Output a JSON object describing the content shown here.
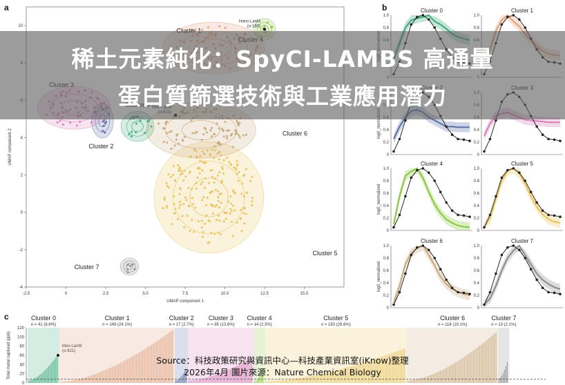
{
  "banner": {
    "line1": "稀土元素純化：SpyCI-LAMBS 高通量",
    "line2": "蛋白質篩選技術與工業應用潛力"
  },
  "source": {
    "line1": "Source：科技政策研究與資訊中心—科技產業資訊室(iKnow)整理",
    "line2": "2026年4月  圖片來源：Nature Chemical Biology"
  },
  "panel_labels": {
    "a": "a",
    "b": "b",
    "c": "c"
  },
  "colors": {
    "c0": "#3aa87a",
    "c1": "#e0a07c",
    "c2": "#5b6fa6",
    "c3": "#d77fb8",
    "c4": "#8cc63f",
    "c5": "#e8c35a",
    "c6": "#c8a77a",
    "c7": "#8a8a8a",
    "ref": "#222222",
    "banner": "#5f5f5f"
  },
  "chart_data": [
    {
      "panel": "a",
      "type": "scatter",
      "xlabel": "UMAP component 1",
      "ylabel": "UMAP component 2",
      "xlim": [
        -2.5,
        17.5
      ],
      "ylim": [
        -4,
        11
      ],
      "xticks": [
        "-2.5",
        "0",
        "2.5",
        "5.0",
        "7.5",
        "10.0",
        "12.5",
        "15.0"
      ],
      "yticks": [
        "-4",
        "-2",
        "0",
        "2",
        "4",
        "6",
        "8",
        "10"
      ],
      "clusters": [
        {
          "name": "Cluster 0",
          "color": "c0",
          "cx": 4.5,
          "cy": 4.6,
          "rx": 0.9,
          "ry": 0.7
        },
        {
          "name": "Cluster 1",
          "color": "c1",
          "cx": 9.3,
          "cy": 8.8,
          "rx": 2.8,
          "ry": 1.2
        },
        {
          "name": "Cluster 2",
          "color": "c2",
          "cx": 2.3,
          "cy": 4.9,
          "rx": 0.6,
          "ry": 0.8
        },
        {
          "name": "Cluster 3",
          "color": "c3",
          "cx": 0.5,
          "cy": 5.6,
          "rx": 2.0,
          "ry": 1.0
        },
        {
          "name": "Cluster 4",
          "color": "c4",
          "cx": 12.5,
          "cy": 9.8,
          "rx": 0.6,
          "ry": 0.5
        },
        {
          "name": "Cluster 5",
          "color": "c5",
          "cx": 9.0,
          "cy": 0.8,
          "rx": 3.0,
          "ry": 2.6
        },
        {
          "name": "Cluster 6",
          "color": "c6",
          "cx": 8.5,
          "cy": 4.4,
          "rx": 3.0,
          "ry": 1.3
        },
        {
          "name": "Cluster 7",
          "color": "c7",
          "cx": 4.0,
          "cy": -2.9,
          "rx": 0.5,
          "ry": 0.4
        }
      ],
      "annotations": [
        {
          "text": "Hans-LanM",
          "text2": "(o-180)",
          "x": 12.5,
          "y": 9.8
        },
        {
          "text": "Mex-LanM",
          "text2": "(o-621)",
          "x": 6.9,
          "y": 5.2
        }
      ]
    },
    {
      "panel": "b",
      "type": "line",
      "ylabel": "log0_normalized",
      "ylim": [
        0,
        1.0
      ],
      "yticks": [
        "0",
        "0.2",
        "0.4",
        "0.6",
        "0.8",
        "1.0"
      ],
      "reference": [
        0.05,
        0.25,
        0.55,
        0.85,
        0.97,
        1.0,
        0.93,
        0.8,
        0.62,
        0.45,
        0.32,
        0.25,
        0.24,
        0.22
      ],
      "panels": [
        {
          "name": "Cluster 0",
          "color": "c0",
          "values": [
            0.3,
            0.55,
            0.8,
            0.92,
            0.95,
            0.97,
            1.0,
            0.9,
            0.85,
            0.78,
            0.7,
            0.65,
            0.62,
            0.6
          ]
        },
        {
          "name": "Cluster 1",
          "color": "c1",
          "values": [
            0.15,
            0.45,
            0.75,
            0.92,
            1.0,
            0.9,
            0.82,
            0.7,
            0.6,
            0.5,
            0.42,
            0.38,
            0.36,
            0.35
          ]
        },
        {
          "name": "Cluster 2",
          "color": "c2",
          "values": [
            0.25,
            0.45,
            0.6,
            0.7,
            0.72,
            0.68,
            0.6,
            0.55,
            0.5,
            0.45,
            0.45,
            0.44,
            0.44,
            0.44
          ]
        },
        {
          "name": "Cluster 3",
          "color": "c3",
          "values": [
            0.3,
            0.5,
            0.62,
            0.66,
            0.68,
            0.64,
            0.6,
            0.56,
            0.55,
            0.54,
            0.53,
            0.52,
            0.52,
            0.52
          ]
        },
        {
          "name": "Cluster 4",
          "color": "c4",
          "values": [
            0.1,
            0.55,
            0.88,
            0.95,
            1.0,
            0.85,
            0.62,
            0.42,
            0.28,
            0.18,
            0.12,
            0.08,
            0.06,
            0.05
          ]
        },
        {
          "name": "Cluster 5",
          "color": "c5",
          "values": [
            0.05,
            0.2,
            0.5,
            0.8,
            0.96,
            1.0,
            0.92,
            0.75,
            0.55,
            0.38,
            0.26,
            0.18,
            0.14,
            0.12
          ]
        },
        {
          "name": "Cluster 6",
          "color": "c6",
          "values": [
            0.08,
            0.35,
            0.7,
            0.88,
            0.96,
            1.0,
            0.85,
            0.68,
            0.5,
            0.38,
            0.3,
            0.25,
            0.22,
            0.2
          ]
        },
        {
          "name": "Cluster 7",
          "color": "c7",
          "values": [
            0.05,
            0.15,
            0.35,
            0.6,
            0.8,
            0.92,
            1.0,
            0.85,
            0.7,
            0.55,
            0.45,
            0.38,
            0.33,
            0.3
          ]
        }
      ]
    },
    {
      "panel": "c",
      "type": "bar",
      "ylabel": "Total metal captured (ppb)",
      "ylim": [
        0,
        120
      ],
      "yticks": [
        "0",
        "20",
        "40",
        "60",
        "80",
        "100",
        "120"
      ],
      "groups": [
        {
          "name": "Cluster 0",
          "n": "n = 41 (6.6%)",
          "color": "c0",
          "count": 41,
          "lo": 5,
          "hi": 60
        },
        {
          "name": "Cluster 1",
          "n": "n = 149 (24.1%)",
          "color": "c1",
          "count": 149,
          "lo": 2,
          "hi": 115
        },
        {
          "name": "Cluster 2",
          "n": "n = 17 (2.7%)",
          "color": "c2",
          "count": 17,
          "lo": 5,
          "hi": 30
        },
        {
          "name": "Cluster 3",
          "n": "n = 85 (13.6%)",
          "color": "c3",
          "count": 85,
          "lo": 5,
          "hi": 55
        },
        {
          "name": "Cluster 4",
          "n": "n = 14 (2.3%)",
          "color": "c4",
          "count": 14,
          "lo": 3,
          "hi": 30
        },
        {
          "name": "Cluster 5",
          "n": "n = 183 (29.6%)",
          "color": "c5",
          "count": 183,
          "lo": 3,
          "hi": 75
        },
        {
          "name": "Cluster 6",
          "n": "n = 118 (19.1%)",
          "color": "c6",
          "count": 118,
          "lo": 5,
          "hi": 110
        },
        {
          "name": "Cluster 7",
          "n": "n = 13 (2.1%)",
          "color": "c7",
          "count": 13,
          "lo": 10,
          "hi": 45
        }
      ],
      "annotation": {
        "text": "Mex-LanM",
        "text2": "(o-621)"
      }
    }
  ]
}
